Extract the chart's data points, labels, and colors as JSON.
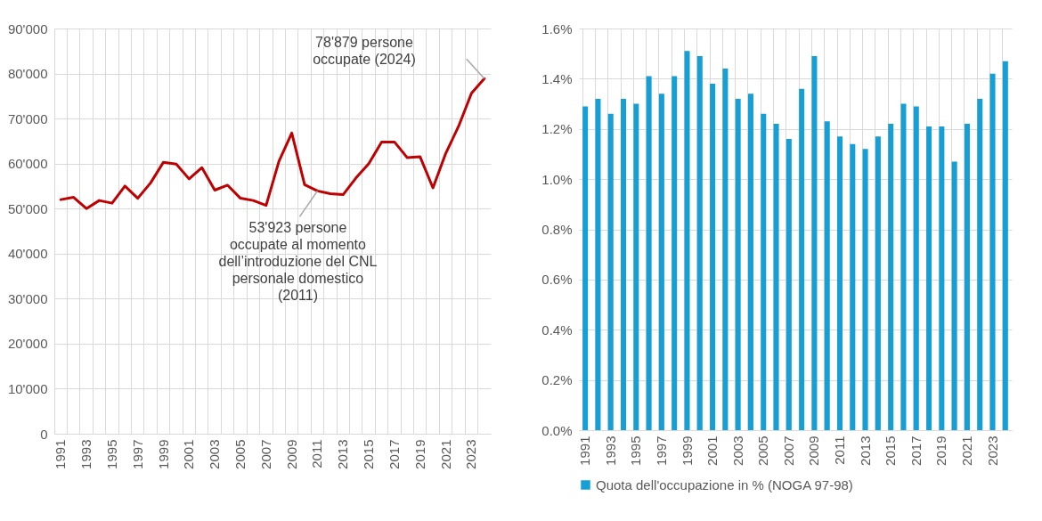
{
  "chart_data": [
    {
      "type": "line",
      "categories": [
        "1991",
        null,
        "1993",
        null,
        "1995",
        null,
        "1997",
        null,
        "1999",
        null,
        "2001",
        null,
        "2003",
        null,
        "2005",
        null,
        "2007",
        null,
        "2009",
        null,
        "2011",
        null,
        "2013",
        null,
        "2015",
        null,
        "2017",
        null,
        "2019",
        null,
        "2021",
        null,
        "2023",
        null
      ],
      "series": [
        {
          "color": "#c00000",
          "values": [
            52000,
            52500,
            50000,
            51800,
            51200,
            55000,
            52300,
            55700,
            60300,
            59900,
            56600,
            59100,
            54100,
            55200,
            52300,
            51800,
            50700,
            60500,
            66800,
            55300,
            53923,
            53300,
            53100,
            56800,
            60000,
            64800,
            64800,
            61300,
            61500,
            54600,
            62300,
            68300,
            75600,
            78879
          ]
        }
      ],
      "ylim": [
        0,
        90000
      ],
      "yticks": [
        0,
        {
          "value": 10000,
          "label": "10'000"
        },
        {
          "value": 20000,
          "label": "20'000"
        },
        {
          "value": 30000,
          "label": "30'000"
        },
        {
          "value": 40000,
          "label": "40'000"
        },
        {
          "value": 50000,
          "label": "50'000"
        },
        {
          "value": 60000,
          "label": "60'000"
        },
        {
          "value": 70000,
          "label": "70'000"
        },
        {
          "value": 80000,
          "label": "80'000"
        },
        {
          "value": 90000,
          "label": "90'000"
        }
      ],
      "grid": true,
      "annotations": [
        "78'879 persone\noccupate (2024)",
        {
          "text": "53'923 persone\noccupate al momento\ndell’introduzione del CNL\npersonale domestico\n(2011)",
          "x": "2011",
          "y": 53923
        }
      ]
    },
    {
      "type": "bar",
      "categories": [
        "1991",
        null,
        "1993",
        null,
        "1995",
        null,
        "1997",
        null,
        "1999",
        null,
        "2001",
        null,
        "2003",
        null,
        "2005",
        null,
        "2007",
        null,
        "2009",
        null,
        "2011",
        null,
        "2013",
        null,
        "2015",
        null,
        "2017",
        null,
        "2019",
        null,
        "2021",
        null,
        "2023",
        null
      ],
      "series": [
        {
          "name": "Quota dell'occupazione in % (NOGA 97-98)",
          "color": "#159fd4",
          "values": [
            1.29,
            1.32,
            1.26,
            1.32,
            1.3,
            1.41,
            1.34,
            1.41,
            1.51,
            1.49,
            1.38,
            1.44,
            1.32,
            1.34,
            1.26,
            1.22,
            1.16,
            1.36,
            1.49,
            1.23,
            1.17,
            1.14,
            1.12,
            1.17,
            1.22,
            1.3,
            1.29,
            1.21,
            1.21,
            1.07,
            1.22,
            1.32,
            1.42,
            1.47
          ]
        }
      ],
      "ylim": [
        0,
        1.6
      ],
      "yticks": [
        {
          "value": 0,
          "label": "0.0%"
        },
        {
          "value": 0.2,
          "label": "0.2%"
        },
        {
          "value": 0.4,
          "label": "0.4%"
        },
        {
          "value": 0.6,
          "label": "0.6%"
        },
        {
          "value": 0.8,
          "label": "0.8%"
        },
        {
          "value": 1,
          "label": "1.0%"
        },
        {
          "value": 1.2,
          "label": "1.2%"
        },
        {
          "value": 1.4,
          "label": "1.4%"
        },
        {
          "value": 1.6,
          "label": "1.6%"
        }
      ],
      "grid": true,
      "legend": "bottom"
    }
  ]
}
